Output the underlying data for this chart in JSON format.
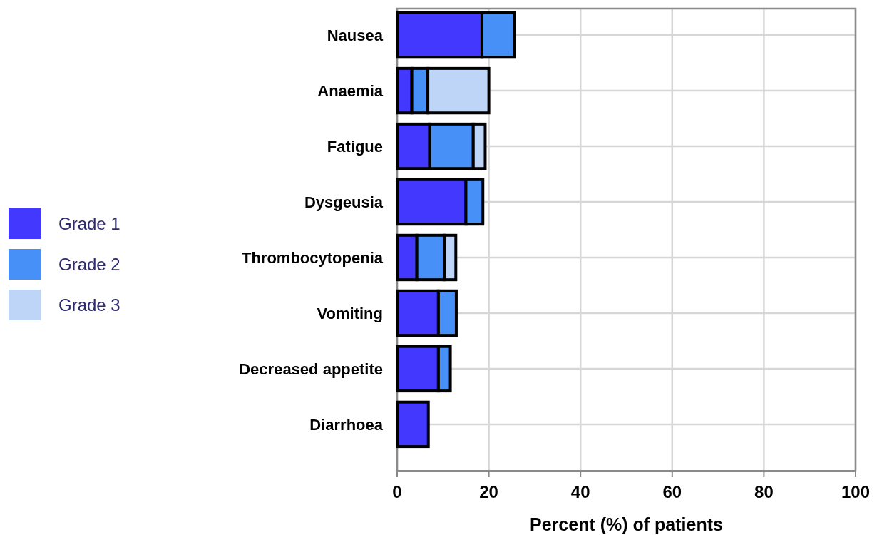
{
  "chart_data": {
    "type": "bar",
    "orientation": "horizontal",
    "stacked": true,
    "xlabel": "Percent (%) of patients",
    "categories": [
      "Nausea",
      "Anaemia",
      "Fatigue",
      "Dysgeusia",
      "Thrombocytopenia",
      "Vomiting",
      "Decreased appetite",
      "Diarrhoea"
    ],
    "series": [
      {
        "name": "Grade 1",
        "color": "#4338fe",
        "values": [
          18.5,
          3.2,
          7.1,
          15.0,
          4.3,
          9.0,
          9.0,
          6.8
        ]
      },
      {
        "name": "Grade 2",
        "color": "#4690f8",
        "values": [
          7.1,
          3.5,
          9.5,
          3.7,
          6.0,
          3.9,
          2.6,
          null
        ]
      },
      {
        "name": "Grade 3",
        "color": "#bfd5f8",
        "values": [
          null,
          13.3,
          2.6,
          null,
          2.5,
          null,
          null,
          null
        ]
      }
    ],
    "xlim": [
      0,
      100
    ],
    "xticks": [
      0,
      20,
      40,
      60,
      80,
      100
    ],
    "grid": true,
    "legend": "left"
  }
}
